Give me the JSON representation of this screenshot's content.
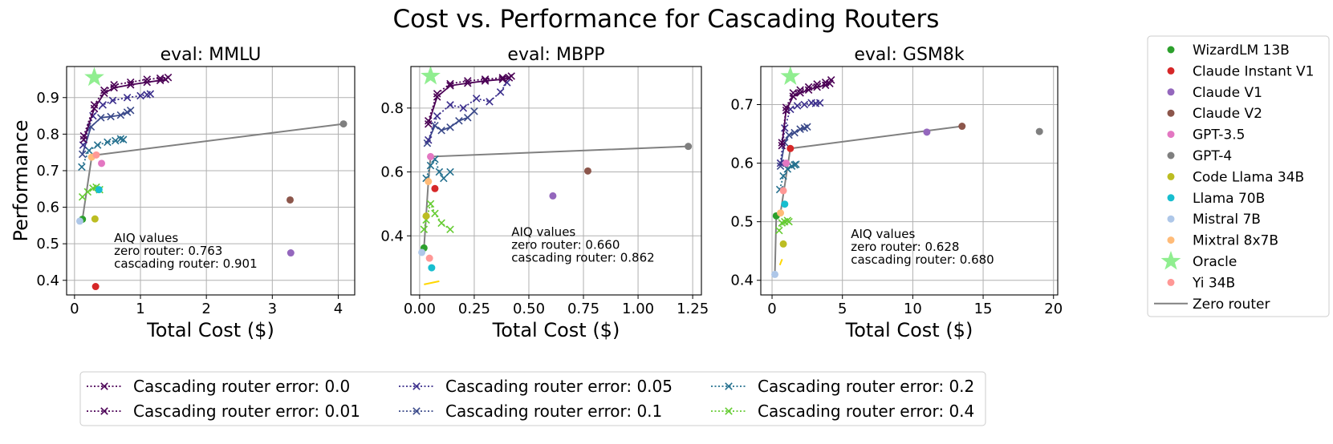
{
  "suptitle": "Cost vs. Performance for Cascading Routers",
  "colors": {
    "WizardLM 13B": "#2ca02c",
    "Claude Instant V1": "#d62728",
    "Claude V1": "#9467bd",
    "Claude V2": "#8c564b",
    "GPT-3.5": "#e377c2",
    "GPT-4": "#7f7f7f",
    "Code Llama 34B": "#bcbd22",
    "Llama 70B": "#17becf",
    "Mistral 7B": "#aec7e8",
    "Mixtral 8x7B": "#ffbb78",
    "Oracle": "#90ee90",
    "Yi 34B": "#ff9896",
    "Zero router": "#808080",
    "err_0.0": "#4b0055",
    "err_0.01": "#4b0055",
    "err_0.05": "#3b2e8c",
    "err_0.1": "#3b4a8a",
    "err_0.2": "#24708e",
    "err_0.4": "#66cc33"
  },
  "model_legend": {
    "items": [
      {
        "label": "WizardLM 13B",
        "kind": "dot"
      },
      {
        "label": "Claude Instant V1",
        "kind": "dot"
      },
      {
        "label": "Claude V1",
        "kind": "dot"
      },
      {
        "label": "Claude V2",
        "kind": "dot"
      },
      {
        "label": "GPT-3.5",
        "kind": "dot"
      },
      {
        "label": "GPT-4",
        "kind": "dot"
      },
      {
        "label": "Code Llama 34B",
        "kind": "dot"
      },
      {
        "label": "Llama 70B",
        "kind": "dot"
      },
      {
        "label": "Mistral 7B",
        "kind": "dot"
      },
      {
        "label": "Mixtral 8x7B",
        "kind": "dot"
      },
      {
        "label": "Oracle",
        "kind": "star"
      },
      {
        "label": "Yi 34B",
        "kind": "dot"
      },
      {
        "label": "Zero router",
        "kind": "line"
      }
    ]
  },
  "error_legend": {
    "items": [
      {
        "label": "Cascading router error: 0.0",
        "key": "err_0.0"
      },
      {
        "label": "Cascading router error: 0.01",
        "key": "err_0.01"
      },
      {
        "label": "Cascading router error: 0.05",
        "key": "err_0.05"
      },
      {
        "label": "Cascading router error: 0.1",
        "key": "err_0.1"
      },
      {
        "label": "Cascading router error: 0.2",
        "key": "err_0.2"
      },
      {
        "label": "Cascading router error: 0.4",
        "key": "err_0.4"
      }
    ]
  },
  "chart_data": [
    {
      "type": "scatter",
      "title": "eval: MMLU",
      "xlabel": "Total Cost ($)",
      "ylabel": "Performance",
      "xlim": [
        -0.12,
        4.25
      ],
      "ylim": [
        0.36,
        0.985
      ],
      "xticks": [
        0,
        1,
        2,
        3,
        4
      ],
      "xtick_labels": [
        "0",
        "1",
        "2",
        "3",
        "4"
      ],
      "yticks": [
        0.4,
        0.5,
        0.6,
        0.7,
        0.8,
        0.9
      ],
      "ytick_labels": [
        "0.4",
        "0.5",
        "0.6",
        "0.7",
        "0.8",
        "0.9"
      ],
      "grid": true,
      "aiq_lines": [
        "AIQ values",
        "zero router: 0.763",
        "cascading router: 0.901"
      ],
      "aiq_pos": [
        0.6,
        0.505
      ],
      "models": [
        {
          "name": "WizardLM 13B",
          "x": 0.12,
          "y": 0.567
        },
        {
          "name": "Claude Instant V1",
          "x": 0.32,
          "y": 0.383
        },
        {
          "name": "Claude V1",
          "x": 3.28,
          "y": 0.475
        },
        {
          "name": "Claude V2",
          "x": 3.27,
          "y": 0.62
        },
        {
          "name": "GPT-3.5",
          "x": 0.41,
          "y": 0.72
        },
        {
          "name": "GPT-4",
          "x": 4.08,
          "y": 0.828
        },
        {
          "name": "Code Llama 34B",
          "x": 0.31,
          "y": 0.568
        },
        {
          "name": "Llama 70B",
          "x": 0.37,
          "y": 0.648
        },
        {
          "name": "Mistral 7B",
          "x": 0.08,
          "y": 0.562
        },
        {
          "name": "Mixtral 8x7B",
          "x": 0.26,
          "y": 0.737
        },
        {
          "name": "Yi 34B",
          "x": 0.33,
          "y": 0.743
        }
      ],
      "oracle": {
        "x": 0.3,
        "y": 0.955
      },
      "zero_router": {
        "x": [
          0.08,
          0.12,
          0.26,
          0.33,
          4.08
        ],
        "y": [
          0.562,
          0.567,
          0.737,
          0.743,
          0.828
        ]
      },
      "cascades": [
        {
          "key": "err_0.0",
          "style": "dotted",
          "x": [
            0.14,
            0.3,
            0.45,
            0.6,
            0.85,
            1.1,
            1.3,
            1.42
          ],
          "y": [
            0.795,
            0.88,
            0.92,
            0.935,
            0.942,
            0.95,
            0.953,
            0.955
          ]
        },
        {
          "key": "err_0.01",
          "style": "solid",
          "x": [
            0.14,
            0.3,
            0.45,
            0.6,
            0.85,
            1.1,
            1.3,
            1.38
          ],
          "y": [
            0.785,
            0.87,
            0.912,
            0.927,
            0.935,
            0.942,
            0.947,
            0.95
          ]
        },
        {
          "key": "err_0.05",
          "style": "dotted",
          "x": [
            0.13,
            0.28,
            0.43,
            0.58,
            0.8,
            1.0,
            1.1,
            1.15
          ],
          "y": [
            0.77,
            0.85,
            0.88,
            0.892,
            0.9,
            0.905,
            0.908,
            0.91
          ]
        },
        {
          "key": "err_0.1",
          "style": "solid",
          "x": [
            0.12,
            0.25,
            0.4,
            0.55,
            0.7,
            0.8,
            0.85
          ],
          "y": [
            0.745,
            0.82,
            0.845,
            0.848,
            0.852,
            0.86,
            0.865
          ]
        },
        {
          "key": "err_0.2",
          "style": "dotted",
          "x": [
            0.11,
            0.22,
            0.35,
            0.5,
            0.62,
            0.7,
            0.74
          ],
          "y": [
            0.71,
            0.755,
            0.77,
            0.778,
            0.782,
            0.787,
            0.785
          ]
        },
        {
          "key": "err_0.4",
          "style": "dotted",
          "x": [
            0.12,
            0.2,
            0.28,
            0.33,
            0.38
          ],
          "y": [
            0.628,
            0.642,
            0.652,
            0.655,
            0.648
          ]
        }
      ]
    },
    {
      "type": "scatter",
      "title": "eval: MBPP",
      "xlabel": "Total Cost ($)",
      "ylabel": "",
      "xlim": [
        -0.04,
        1.29
      ],
      "ylim": [
        0.215,
        0.93
      ],
      "xticks": [
        0,
        0.25,
        0.5,
        0.75,
        1.0,
        1.25
      ],
      "xtick_labels": [
        "0.00",
        "0.25",
        "0.50",
        "0.75",
        "1.00",
        "1.25"
      ],
      "yticks": [
        0.4,
        0.6,
        0.8
      ],
      "ytick_labels": [
        "0.4",
        "0.6",
        "0.8"
      ],
      "grid": true,
      "aiq_lines": [
        "AIQ values",
        "zero router: 0.660",
        "cascading router: 0.862"
      ],
      "aiq_pos": [
        0.42,
        0.4
      ],
      "models": [
        {
          "name": "WizardLM 13B",
          "x": 0.02,
          "y": 0.362
        },
        {
          "name": "Claude Instant V1",
          "x": 0.07,
          "y": 0.548
        },
        {
          "name": "Claude V1",
          "x": 0.61,
          "y": 0.525
        },
        {
          "name": "Claude V2",
          "x": 0.77,
          "y": 0.603
        },
        {
          "name": "GPT-3.5",
          "x": 0.05,
          "y": 0.648
        },
        {
          "name": "GPT-4",
          "x": 1.23,
          "y": 0.68
        },
        {
          "name": "Code Llama 34B",
          "x": 0.03,
          "y": 0.462
        },
        {
          "name": "Llama 70B",
          "x": 0.055,
          "y": 0.3
        },
        {
          "name": "Mistral 7B",
          "x": 0.01,
          "y": 0.348
        },
        {
          "name": "Mixtral 8x7B",
          "x": 0.04,
          "y": 0.57
        },
        {
          "name": "Yi 34B",
          "x": 0.045,
          "y": 0.33
        }
      ],
      "oracle": {
        "x": 0.05,
        "y": 0.9
      },
      "zero_router": {
        "x": [
          0.01,
          0.02,
          0.04,
          0.05,
          1.23
        ],
        "y": [
          0.348,
          0.362,
          0.57,
          0.648,
          0.68
        ]
      },
      "cascades": [
        {
          "key": "err_0.0",
          "style": "dotted",
          "x": [
            0.04,
            0.08,
            0.14,
            0.22,
            0.3,
            0.38,
            0.42
          ],
          "y": [
            0.76,
            0.845,
            0.876,
            0.885,
            0.89,
            0.895,
            0.9
          ]
        },
        {
          "key": "err_0.01",
          "style": "solid",
          "x": [
            0.04,
            0.08,
            0.14,
            0.22,
            0.3,
            0.38,
            0.41
          ],
          "y": [
            0.75,
            0.835,
            0.87,
            0.878,
            0.885,
            0.89,
            0.895
          ]
        },
        {
          "key": "err_0.05",
          "style": "dotted",
          "x": [
            0.04,
            0.08,
            0.14,
            0.2,
            0.26,
            0.32,
            0.37,
            0.4
          ],
          "y": [
            0.7,
            0.775,
            0.81,
            0.8,
            0.83,
            0.82,
            0.85,
            0.88
          ]
        },
        {
          "key": "err_0.1",
          "style": "solid",
          "x": [
            0.035,
            0.07,
            0.1,
            0.14,
            0.18,
            0.22,
            0.25
          ],
          "y": [
            0.69,
            0.745,
            0.73,
            0.74,
            0.76,
            0.77,
            0.79
          ]
        },
        {
          "key": "err_0.2",
          "style": "dotted",
          "x": [
            0.03,
            0.05,
            0.07,
            0.09,
            0.11,
            0.14
          ],
          "y": [
            0.58,
            0.62,
            0.64,
            0.6,
            0.58,
            0.6
          ]
        },
        {
          "key": "err_0.4",
          "style": "dotted",
          "x": [
            0.02,
            0.03,
            0.05,
            0.07,
            0.1,
            0.14
          ],
          "y": [
            0.42,
            0.45,
            0.5,
            0.47,
            0.44,
            0.42
          ]
        }
      ],
      "extra_marks": [
        {
          "kind": "segment",
          "color": "#ffd700",
          "x": [
            0.02,
            0.09
          ],
          "y": [
            0.248,
            0.258
          ]
        }
      ]
    },
    {
      "type": "scatter",
      "title": "eval: GSM8k",
      "xlabel": "Total Cost ($)",
      "ylabel": "",
      "xlim": [
        -0.8,
        20.3
      ],
      "ylim": [
        0.375,
        0.765
      ],
      "xticks": [
        0,
        5,
        10,
        15,
        20
      ],
      "xtick_labels": [
        "0",
        "5",
        "10",
        "15",
        "20"
      ],
      "yticks": [
        0.4,
        0.5,
        0.6,
        0.7
      ],
      "ytick_labels": [
        "0.4",
        "0.5",
        "0.6",
        "0.7"
      ],
      "grid": true,
      "aiq_lines": [
        "AIQ values",
        "zero router: 0.628",
        "cascading router: 0.680"
      ],
      "aiq_pos": [
        5.6,
        0.472
      ],
      "models": [
        {
          "name": "WizardLM 13B",
          "x": 0.3,
          "y": 0.51
        },
        {
          "name": "Claude Instant V1",
          "x": 1.3,
          "y": 0.625
        },
        {
          "name": "Claude V1",
          "x": 11.0,
          "y": 0.653
        },
        {
          "name": "Claude V2",
          "x": 13.5,
          "y": 0.663
        },
        {
          "name": "GPT-3.5",
          "x": 1.0,
          "y": 0.6
        },
        {
          "name": "GPT-4",
          "x": 19.0,
          "y": 0.654
        },
        {
          "name": "Code Llama 34B",
          "x": 0.8,
          "y": 0.462
        },
        {
          "name": "Llama 70B",
          "x": 0.9,
          "y": 0.53
        },
        {
          "name": "Mistral 7B",
          "x": 0.2,
          "y": 0.41
        },
        {
          "name": "Mixtral 8x7B",
          "x": 0.6,
          "y": 0.515
        },
        {
          "name": "Yi 34B",
          "x": 0.8,
          "y": 0.553
        }
      ],
      "oracle": {
        "x": 1.3,
        "y": 0.748
      },
      "zero_router": {
        "x": [
          0.2,
          0.3,
          0.6,
          1.3,
          13.5
        ],
        "y": [
          0.41,
          0.51,
          0.515,
          0.625,
          0.663
        ]
      },
      "cascades": [
        {
          "key": "err_0.0",
          "style": "dotted",
          "x": [
            0.7,
            1.0,
            1.5,
            2.0,
            2.6,
            3.2,
            3.8,
            4.2
          ],
          "y": [
            0.635,
            0.695,
            0.72,
            0.725,
            0.73,
            0.735,
            0.738,
            0.742
          ]
        },
        {
          "key": "err_0.01",
          "style": "solid",
          "x": [
            0.7,
            1.0,
            1.5,
            2.0,
            2.6,
            3.2,
            3.8,
            4.1
          ],
          "y": [
            0.63,
            0.69,
            0.714,
            0.72,
            0.725,
            0.73,
            0.733,
            0.736
          ]
        },
        {
          "key": "err_0.05",
          "style": "dotted",
          "x": [
            0.6,
            0.9,
            1.3,
            1.8,
            2.3,
            2.8,
            3.1,
            3.4
          ],
          "y": [
            0.6,
            0.66,
            0.692,
            0.698,
            0.7,
            0.703,
            0.702,
            0.703
          ]
        },
        {
          "key": "err_0.1",
          "style": "solid",
          "x": [
            0.6,
            0.9,
            1.2,
            1.6,
            2.0,
            2.3,
            2.5
          ],
          "y": [
            0.595,
            0.635,
            0.648,
            0.652,
            0.658,
            0.66,
            0.662
          ]
        },
        {
          "key": "err_0.2",
          "style": "dotted",
          "x": [
            0.55,
            0.8,
            1.1,
            1.4,
            1.6,
            1.7
          ],
          "y": [
            0.555,
            0.578,
            0.59,
            0.595,
            0.597,
            0.598
          ]
        },
        {
          "key": "err_0.4",
          "style": "dotted",
          "x": [
            0.5,
            0.7,
            0.9,
            1.1,
            1.2
          ],
          "y": [
            0.485,
            0.498,
            0.5,
            0.502,
            0.5
          ]
        }
      ],
      "extra_marks": [
        {
          "kind": "segment",
          "color": "#ffd700",
          "x": [
            0.55,
            0.72
          ],
          "y": [
            0.426,
            0.436
          ]
        }
      ]
    }
  ]
}
